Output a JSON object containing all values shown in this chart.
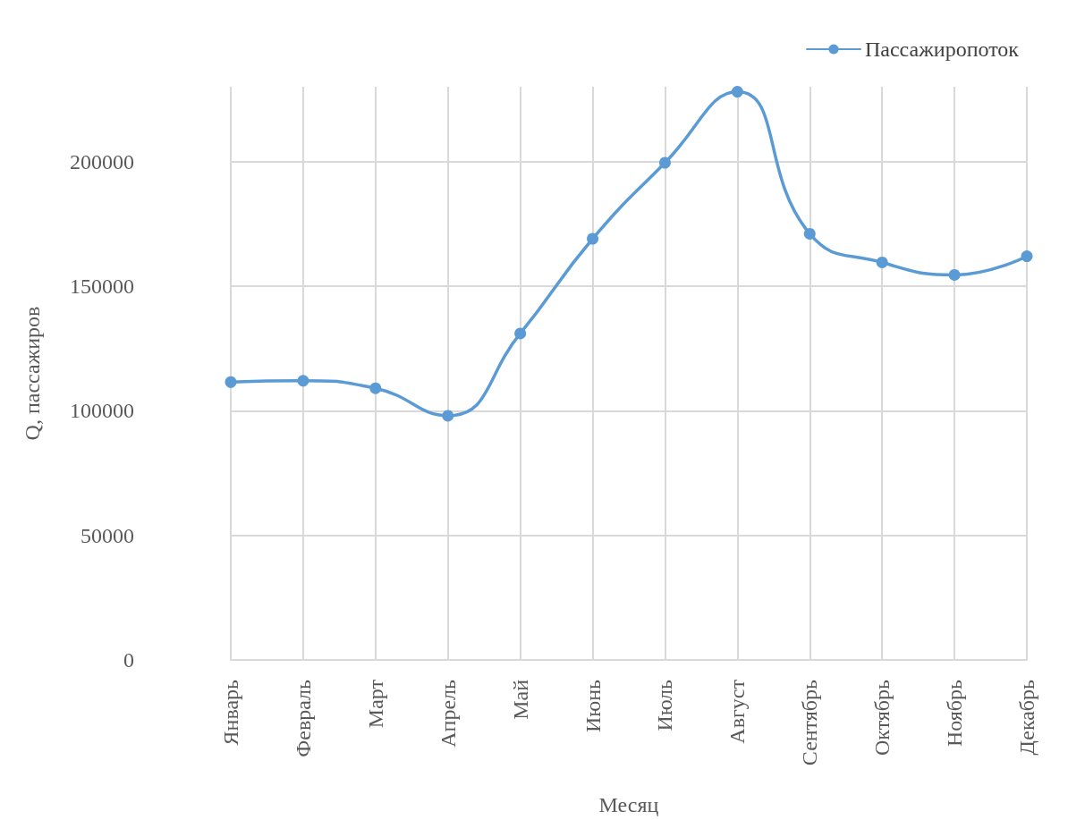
{
  "chart_data": {
    "type": "line",
    "xlabel": "Месяц",
    "ylabel": "Q, пассажиров",
    "categories": [
      "Январь",
      "Февраль",
      "Март",
      "Апрель",
      "Май",
      "Июнь",
      "Июль",
      "Август",
      "Сентябрь",
      "Октябрь",
      "Ноябрь",
      "Декабрь"
    ],
    "series": [
      {
        "name": "Пассажиропоток",
        "color": "#5b9bd5",
        "values": [
          111500,
          112000,
          109000,
          98000,
          131000,
          169000,
          199500,
          228000,
          171000,
          159500,
          154500,
          162000
        ]
      }
    ],
    "ylim": [
      0,
      230000
    ],
    "yticks": [
      0,
      50000,
      100000,
      150000,
      200000
    ],
    "grid": true,
    "legend": "top right",
    "marker": "circle",
    "line_style": "solid"
  }
}
